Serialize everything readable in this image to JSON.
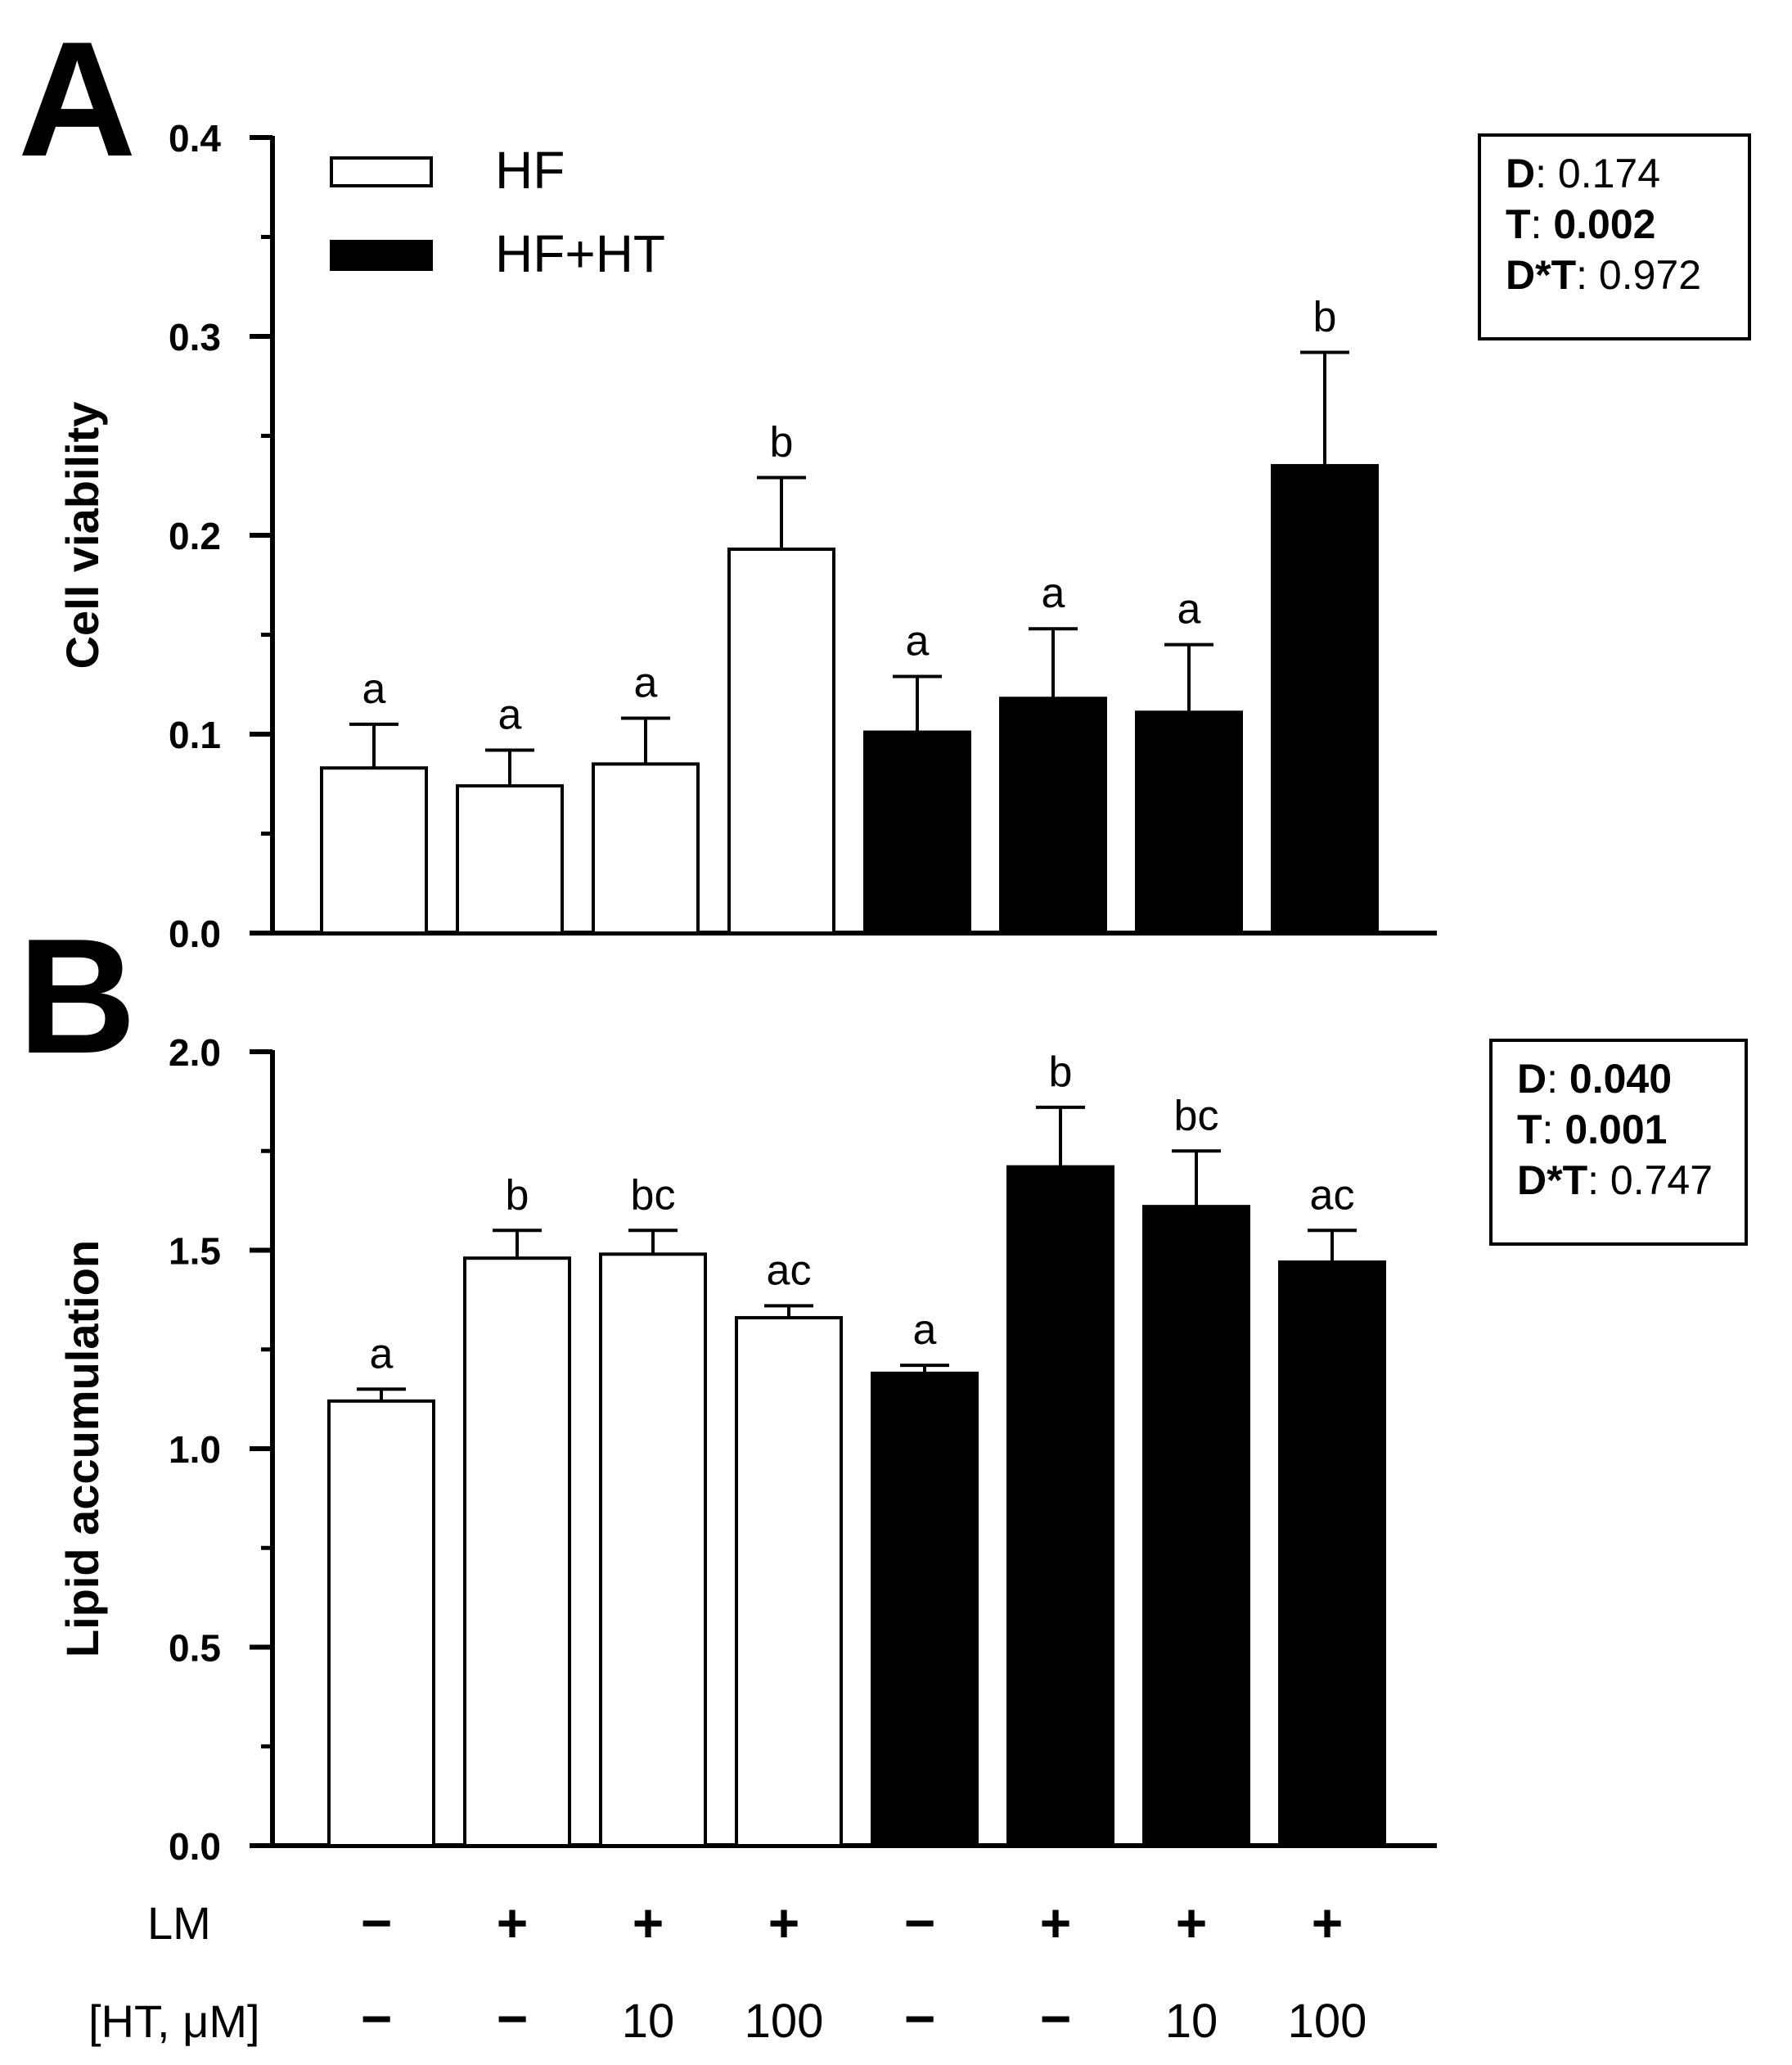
{
  "panels": {
    "a": {
      "letter": "A",
      "stats": {
        "d_label": "D",
        "d_value": "0.174",
        "t_label": "T",
        "t_value": "0.002",
        "dt_label": "D*T",
        "dt_value": "0.972"
      }
    },
    "b": {
      "letter": "B",
      "stats": {
        "d_label": "D",
        "d_value": "0.040",
        "t_label": "T",
        "t_value": "0.001",
        "dt_label": "D*T",
        "dt_value": "0.747"
      }
    }
  },
  "legend": [
    {
      "label": "HF",
      "fill": "#ffffff"
    },
    {
      "label": "HF+HT",
      "fill": "#000000"
    }
  ],
  "treatment_rows": {
    "lm_label": "LM",
    "lm_values": [
      "−",
      "+",
      "+",
      "+",
      "−",
      "+",
      "+",
      "+"
    ],
    "ht_label": "[HT, μM]",
    "ht_values": [
      "−",
      "−",
      "10",
      "100",
      "−",
      "−",
      "10",
      "100"
    ]
  },
  "colors": {
    "hf_fill": "#ffffff",
    "hfht_fill": "#000000",
    "stroke": "#000000"
  },
  "chart_data": [
    {
      "type": "bar",
      "panel": "A",
      "ylabel": "Cell viability",
      "ylim": [
        0,
        0.4
      ],
      "yticks": [
        "0.0",
        "0.1",
        "0.2",
        "0.3",
        "0.4"
      ],
      "ytick_values": [
        0,
        0.1,
        0.2,
        0.3,
        0.4
      ],
      "minor_tick_step": 0.05,
      "grid": false,
      "legend_position": "top-left",
      "groups": [
        "HF",
        "HF",
        "HF",
        "HF",
        "HF+HT",
        "HF+HT",
        "HF+HT",
        "HF+HT"
      ],
      "values": [
        0.083,
        0.074,
        0.085,
        0.193,
        0.101,
        0.118,
        0.111,
        0.235
      ],
      "errors": [
        0.022,
        0.018,
        0.023,
        0.036,
        0.028,
        0.035,
        0.034,
        0.057
      ],
      "letters": [
        "a",
        "a",
        "a",
        "b",
        "a",
        "a",
        "a",
        "b"
      ]
    },
    {
      "type": "bar",
      "panel": "B",
      "ylabel": "Lipid accumulation",
      "ylim": [
        0,
        2.0
      ],
      "yticks": [
        "0.0",
        "0.5",
        "1.0",
        "1.5",
        "2.0"
      ],
      "ytick_values": [
        0,
        0.5,
        1.0,
        1.5,
        2.0
      ],
      "minor_tick_step": 0.25,
      "grid": false,
      "groups": [
        "HF",
        "HF",
        "HF",
        "HF",
        "HF+HT",
        "HF+HT",
        "HF+HT",
        "HF+HT"
      ],
      "values": [
        1.12,
        1.48,
        1.49,
        1.33,
        1.19,
        1.71,
        1.61,
        1.47
      ],
      "errors": [
        0.03,
        0.07,
        0.06,
        0.03,
        0.02,
        0.15,
        0.14,
        0.08
      ],
      "letters": [
        "a",
        "b",
        "bc",
        "ac",
        "a",
        "b",
        "bc",
        "ac"
      ]
    }
  ]
}
